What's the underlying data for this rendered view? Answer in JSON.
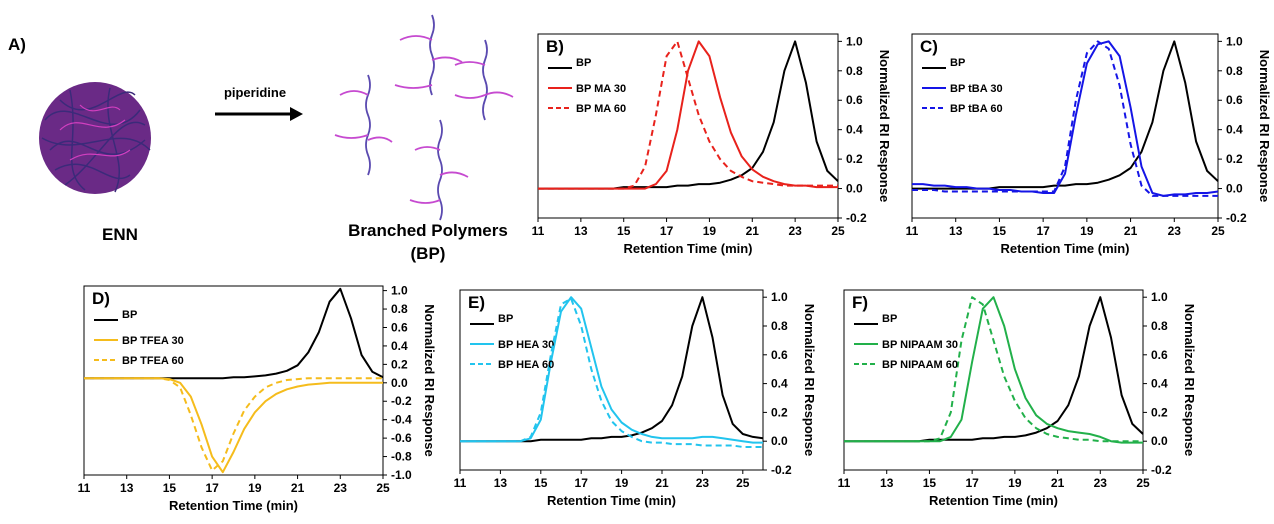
{
  "panel_a": {
    "label": "A)",
    "reagent": "piperidine",
    "left_label": "ENN",
    "right_label_1": "Branched Polymers",
    "right_label_2": "(BP)"
  },
  "chart_data": [
    {
      "type": "line",
      "title": "B)",
      "xlabel": "Retention Time (min)",
      "ylabel": "Normalized RI Response",
      "x": [
        11,
        11.5,
        12,
        12.5,
        13,
        13.5,
        14,
        14.5,
        15,
        15.5,
        16,
        16.5,
        17,
        17.5,
        18,
        18.5,
        19,
        19.5,
        20,
        20.5,
        21,
        21.5,
        22,
        22.5,
        23,
        23.5,
        24,
        24.5,
        25
      ],
      "xlim": [
        11,
        25
      ],
      "xticks": [
        11,
        13,
        15,
        17,
        19,
        21,
        23,
        25
      ],
      "ylim": [
        -0.2,
        1.05
      ],
      "yticks": [
        -0.2,
        {
          "value": 0,
          "label": "0.0"
        },
        0.2,
        0.4,
        0.6,
        0.8,
        {
          "value": 1,
          "label": "1.0"
        }
      ],
      "series": [
        {
          "name": "BP",
          "color": "#000000",
          "style": "solid",
          "values": [
            0,
            0,
            0,
            0,
            0,
            0,
            0,
            0,
            0.01,
            0.01,
            0.01,
            0.01,
            0.01,
            0.02,
            0.02,
            0.03,
            0.03,
            0.04,
            0.06,
            0.09,
            0.14,
            0.25,
            0.45,
            0.8,
            1,
            0.72,
            0.32,
            0.12,
            0.05
          ]
        },
        {
          "name": "BP MA 30",
          "color": "#e8221c",
          "style": "solid",
          "values": [
            0,
            0,
            0,
            0,
            0,
            0,
            0,
            0,
            0,
            0,
            0,
            0.03,
            0.12,
            0.4,
            0.8,
            1,
            0.9,
            0.62,
            0.38,
            0.22,
            0.13,
            0.08,
            0.05,
            0.03,
            0.02,
            0.02,
            0.01,
            0.01,
            0.01
          ]
        },
        {
          "name": "BP MA 60",
          "color": "#e8221c",
          "style": "dashed",
          "values": [
            0,
            0,
            0,
            0,
            0,
            0,
            0,
            0,
            0,
            0.02,
            0.15,
            0.5,
            0.9,
            1,
            0.75,
            0.5,
            0.32,
            0.2,
            0.12,
            0.08,
            0.05,
            0.04,
            0.03,
            0.02,
            0.02,
            0.02,
            0.02,
            0.02,
            0.02
          ]
        }
      ]
    },
    {
      "type": "line",
      "title": "C)",
      "xlabel": "Retention Time (min)",
      "ylabel": "Normalized RI Response",
      "x": [
        11,
        11.5,
        12,
        12.5,
        13,
        13.5,
        14,
        14.5,
        15,
        15.5,
        16,
        16.5,
        17,
        17.5,
        18,
        18.5,
        19,
        19.5,
        20,
        20.5,
        21,
        21.5,
        22,
        22.5,
        23,
        23.5,
        24,
        24.5,
        25
      ],
      "xlim": [
        11,
        25
      ],
      "xticks": [
        11,
        13,
        15,
        17,
        19,
        21,
        23,
        25
      ],
      "ylim": [
        -0.2,
        1.05
      ],
      "yticks": [
        -0.2,
        {
          "value": 0,
          "label": "0.0"
        },
        0.2,
        0.4,
        0.6,
        0.8,
        {
          "value": 1,
          "label": "1.0"
        }
      ],
      "series": [
        {
          "name": "BP",
          "color": "#000000",
          "style": "solid",
          "values": [
            0,
            0,
            0,
            0,
            0,
            0,
            0,
            0,
            0.01,
            0.01,
            0.01,
            0.01,
            0.01,
            0.02,
            0.02,
            0.03,
            0.03,
            0.04,
            0.06,
            0.09,
            0.14,
            0.25,
            0.45,
            0.8,
            1,
            0.72,
            0.32,
            0.12,
            0.05
          ]
        },
        {
          "name": "BP tBA 30",
          "color": "#1515e6",
          "style": "solid",
          "values": [
            0.03,
            0.03,
            0.02,
            0.02,
            0.01,
            0.01,
            0,
            0,
            -0.01,
            -0.01,
            -0.02,
            -0.02,
            -0.03,
            -0.03,
            0.1,
            0.5,
            0.85,
            0.98,
            1,
            0.9,
            0.55,
            0.15,
            -0.03,
            -0.05,
            -0.04,
            -0.04,
            -0.03,
            -0.03,
            -0.02
          ]
        },
        {
          "name": "BP tBA 60",
          "color": "#1515e6",
          "style": "dashed",
          "values": [
            -0.01,
            -0.01,
            -0.01,
            -0.02,
            -0.02,
            -0.02,
            -0.02,
            -0.02,
            -0.02,
            -0.02,
            -0.02,
            -0.02,
            -0.02,
            -0.02,
            0.15,
            0.6,
            0.92,
            1,
            0.95,
            0.7,
            0.3,
            0.02,
            -0.05,
            -0.05,
            -0.05,
            -0.05,
            -0.05,
            -0.05,
            -0.05
          ]
        }
      ]
    },
    {
      "type": "line",
      "title": "D)",
      "xlabel": "Retention Time (min)",
      "ylabel": "Normalized RI Response",
      "x": [
        11,
        11.5,
        12,
        12.5,
        13,
        13.5,
        14,
        14.5,
        15,
        15.5,
        16,
        16.5,
        17,
        17.5,
        18,
        18.5,
        19,
        19.5,
        20,
        20.5,
        21,
        21.5,
        22,
        22.5,
        23,
        23.5,
        24,
        24.5,
        25
      ],
      "xlim": [
        11,
        25
      ],
      "xticks": [
        11,
        13,
        15,
        17,
        19,
        21,
        23,
        25
      ],
      "ylim": [
        -1,
        1.05
      ],
      "yticks": [
        {
          "value": -1,
          "label": "-1.0"
        },
        -0.8,
        -0.6,
        -0.4,
        -0.2,
        {
          "value": 0,
          "label": "0.0"
        },
        0.2,
        0.4,
        0.6,
        0.8,
        {
          "value": 1,
          "label": "1.0"
        }
      ],
      "series": [
        {
          "name": "BP",
          "color": "#000000",
          "style": "solid",
          "values": [
            0.05,
            0.05,
            0.05,
            0.05,
            0.05,
            0.05,
            0.05,
            0.05,
            0.05,
            0.05,
            0.05,
            0.05,
            0.05,
            0.05,
            0.06,
            0.06,
            0.07,
            0.08,
            0.1,
            0.13,
            0.19,
            0.33,
            0.55,
            0.88,
            1.02,
            0.7,
            0.3,
            0.12,
            0.06
          ]
        },
        {
          "name": "BP TFEA 30",
          "color": "#f5bc1c",
          "style": "solid",
          "values": [
            0.05,
            0.05,
            0.05,
            0.05,
            0.05,
            0.05,
            0.05,
            0.05,
            0.04,
            0,
            -0.15,
            -0.45,
            -0.8,
            -0.97,
            -0.75,
            -0.5,
            -0.32,
            -0.2,
            -0.12,
            -0.07,
            -0.04,
            -0.02,
            -0.01,
            0,
            0,
            0,
            0,
            0,
            0
          ]
        },
        {
          "name": "BP TFEA 60",
          "color": "#f5bc1c",
          "style": "dashed",
          "values": [
            0.05,
            0.05,
            0.05,
            0.05,
            0.05,
            0.05,
            0.05,
            0.05,
            0.03,
            -0.05,
            -0.35,
            -0.7,
            -0.95,
            -0.85,
            -0.55,
            -0.3,
            -0.15,
            -0.05,
            0,
            0.03,
            0.04,
            0.05,
            0.05,
            0.05,
            0.05,
            0.05,
            0.05,
            0.05,
            0.05
          ]
        }
      ]
    },
    {
      "type": "line",
      "title": "E)",
      "xlabel": "Retention Time (min)",
      "ylabel": "Normalized RI Response",
      "x": [
        11,
        11.5,
        12,
        12.5,
        13,
        13.5,
        14,
        14.5,
        15,
        15.5,
        16,
        16.5,
        17,
        17.5,
        18,
        18.5,
        19,
        19.5,
        20,
        20.5,
        21,
        21.5,
        22,
        22.5,
        23,
        23.5,
        24,
        24.5,
        25,
        25.5,
        26
      ],
      "xlim": [
        11,
        26
      ],
      "xticks": [
        11,
        13,
        15,
        17,
        19,
        21,
        23,
        25
      ],
      "ylim": [
        -0.2,
        1.05
      ],
      "yticks": [
        -0.2,
        {
          "value": 0,
          "label": "0.0"
        },
        0.2,
        0.4,
        0.6,
        0.8,
        {
          "value": 1,
          "label": "1.0"
        }
      ],
      "series": [
        {
          "name": "BP",
          "color": "#000000",
          "style": "solid",
          "values": [
            0,
            0,
            0,
            0,
            0,
            0,
            0,
            0,
            0.01,
            0.01,
            0.01,
            0.01,
            0.01,
            0.02,
            0.02,
            0.03,
            0.03,
            0.04,
            0.06,
            0.09,
            0.14,
            0.25,
            0.45,
            0.8,
            1,
            0.72,
            0.32,
            0.12,
            0.05,
            0.03,
            0.02
          ]
        },
        {
          "name": "BP HEA 30",
          "color": "#22c4ee",
          "style": "solid",
          "values": [
            0,
            0,
            0,
            0,
            0,
            0,
            0,
            0.02,
            0.15,
            0.55,
            0.9,
            1,
            0.92,
            0.65,
            0.38,
            0.22,
            0.13,
            0.08,
            0.05,
            0.03,
            0.02,
            0.02,
            0.02,
            0.02,
            0.03,
            0.03,
            0.02,
            0.01,
            0,
            -0.01,
            -0.01
          ]
        },
        {
          "name": "BP HEA 60",
          "color": "#22c4ee",
          "style": "dashed",
          "values": [
            0,
            0,
            0,
            0,
            0,
            0,
            0,
            0.03,
            0.2,
            0.6,
            0.95,
            0.99,
            0.8,
            0.5,
            0.28,
            0.14,
            0.07,
            0.03,
            0,
            -0.01,
            -0.01,
            -0.02,
            -0.02,
            -0.02,
            -0.03,
            -0.03,
            -0.03,
            -0.03,
            -0.04,
            -0.04,
            -0.04
          ]
        }
      ]
    },
    {
      "type": "line",
      "title": "F)",
      "xlabel": "Retention Time (min)",
      "ylabel": "Normalized RI Response",
      "x": [
        11,
        11.5,
        12,
        12.5,
        13,
        13.5,
        14,
        14.5,
        15,
        15.5,
        16,
        16.5,
        17,
        17.5,
        18,
        18.5,
        19,
        19.5,
        20,
        20.5,
        21,
        21.5,
        22,
        22.5,
        23,
        23.5,
        24,
        24.5,
        25
      ],
      "xlim": [
        11,
        25
      ],
      "xticks": [
        11,
        13,
        15,
        17,
        19,
        21,
        23,
        25
      ],
      "ylim": [
        -0.2,
        1.05
      ],
      "yticks": [
        -0.2,
        {
          "value": 0,
          "label": "0.0"
        },
        0.2,
        0.4,
        0.6,
        0.8,
        {
          "value": 1,
          "label": "1.0"
        }
      ],
      "series": [
        {
          "name": "BP",
          "color": "#000000",
          "style": "solid",
          "values": [
            0,
            0,
            0,
            0,
            0,
            0,
            0,
            0,
            0.01,
            0.01,
            0.01,
            0.01,
            0.01,
            0.02,
            0.02,
            0.03,
            0.03,
            0.04,
            0.06,
            0.09,
            0.14,
            0.25,
            0.45,
            0.8,
            1,
            0.72,
            0.32,
            0.12,
            0.05
          ]
        },
        {
          "name": "BP NIPAAM 30",
          "color": "#22b04a",
          "style": "solid",
          "values": [
            0,
            0,
            0,
            0,
            0,
            0,
            0,
            0,
            0,
            0,
            0.03,
            0.15,
            0.55,
            0.92,
            1,
            0.8,
            0.5,
            0.3,
            0.18,
            0.12,
            0.09,
            0.07,
            0.06,
            0.05,
            0.03,
            0,
            -0.01,
            -0.01,
            -0.01
          ]
        },
        {
          "name": "BP NIPAAM 60",
          "color": "#22b04a",
          "style": "dashed",
          "values": [
            0,
            0,
            0,
            0,
            0,
            0,
            0,
            0,
            0,
            0.02,
            0.2,
            0.7,
            1,
            0.95,
            0.7,
            0.45,
            0.28,
            0.16,
            0.09,
            0.05,
            0.03,
            0.02,
            0.01,
            0.01,
            0,
            0,
            0,
            0,
            0
          ]
        }
      ]
    }
  ]
}
